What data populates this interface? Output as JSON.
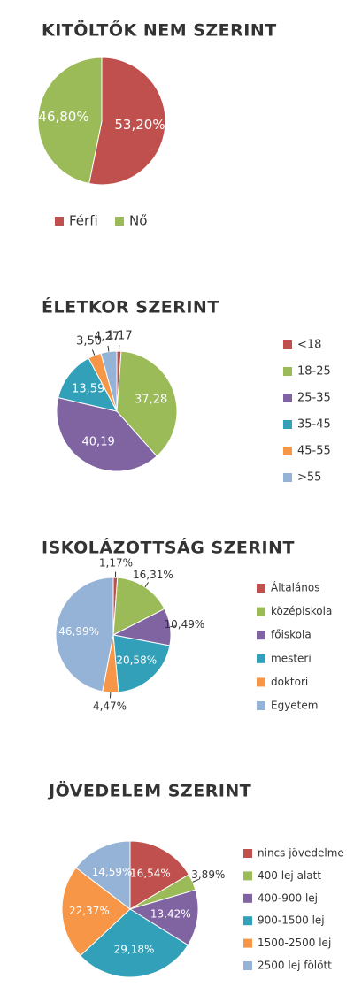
{
  "chart_data": [
    {
      "type": "pie",
      "title": "KITÖLTŐK NEM SZERINT",
      "categories": [
        "Férfi",
        "Nő"
      ],
      "values": [
        53.2,
        46.8
      ],
      "value_labels": [
        "53,20%",
        "46,80%"
      ],
      "colors": [
        "#c0504d",
        "#9bbb59"
      ],
      "legend": "bottom"
    },
    {
      "type": "pie",
      "title": "ÉLETKOR SZERINT",
      "categories": [
        "<18",
        "18-25",
        "25-35",
        "35-45",
        "45-55",
        ">55"
      ],
      "values": [
        1.17,
        37.28,
        40.19,
        13.59,
        3.5,
        4.27
      ],
      "value_labels": [
        "1,17",
        "37,28",
        "40,19",
        "13,59",
        "3,50",
        "4,27"
      ],
      "colors": [
        "#c0504d",
        "#9bbb59",
        "#8064a2",
        "#31a0b8",
        "#f79646",
        "#95b3d7"
      ],
      "legend": "right"
    },
    {
      "type": "pie",
      "title": "ISKOLÁZOTTSÁG SZERINT",
      "categories": [
        "Általános",
        "középiskola",
        "főiskola",
        "mesteri",
        "doktori",
        "Egyetem"
      ],
      "values": [
        1.17,
        16.31,
        10.49,
        20.58,
        4.47,
        46.99
      ],
      "value_labels": [
        "1,17%",
        "16,31%",
        "10,49%",
        "20,58%",
        "4,47%",
        "46,99%"
      ],
      "colors": [
        "#c0504d",
        "#9bbb59",
        "#8064a2",
        "#31a0b8",
        "#f79646",
        "#95b3d7"
      ],
      "legend": "right"
    },
    {
      "type": "pie",
      "title": "JÖVEDELEM SZERINT",
      "categories": [
        "nincs jövedelme",
        "400 lej alatt",
        "400-900 lej",
        "900-1500 lej",
        "1500-2500 lej",
        "2500 lej fölött"
      ],
      "values": [
        16.54,
        3.89,
        13.42,
        29.18,
        22.37,
        14.59
      ],
      "value_labels": [
        "16,54%",
        "3,89%",
        "13,42%",
        "29,18%",
        "22,37%",
        "14,59%"
      ],
      "colors": [
        "#c0504d",
        "#9bbb59",
        "#8064a2",
        "#31a0b8",
        "#f79646",
        "#95b3d7"
      ],
      "legend": "right"
    }
  ]
}
